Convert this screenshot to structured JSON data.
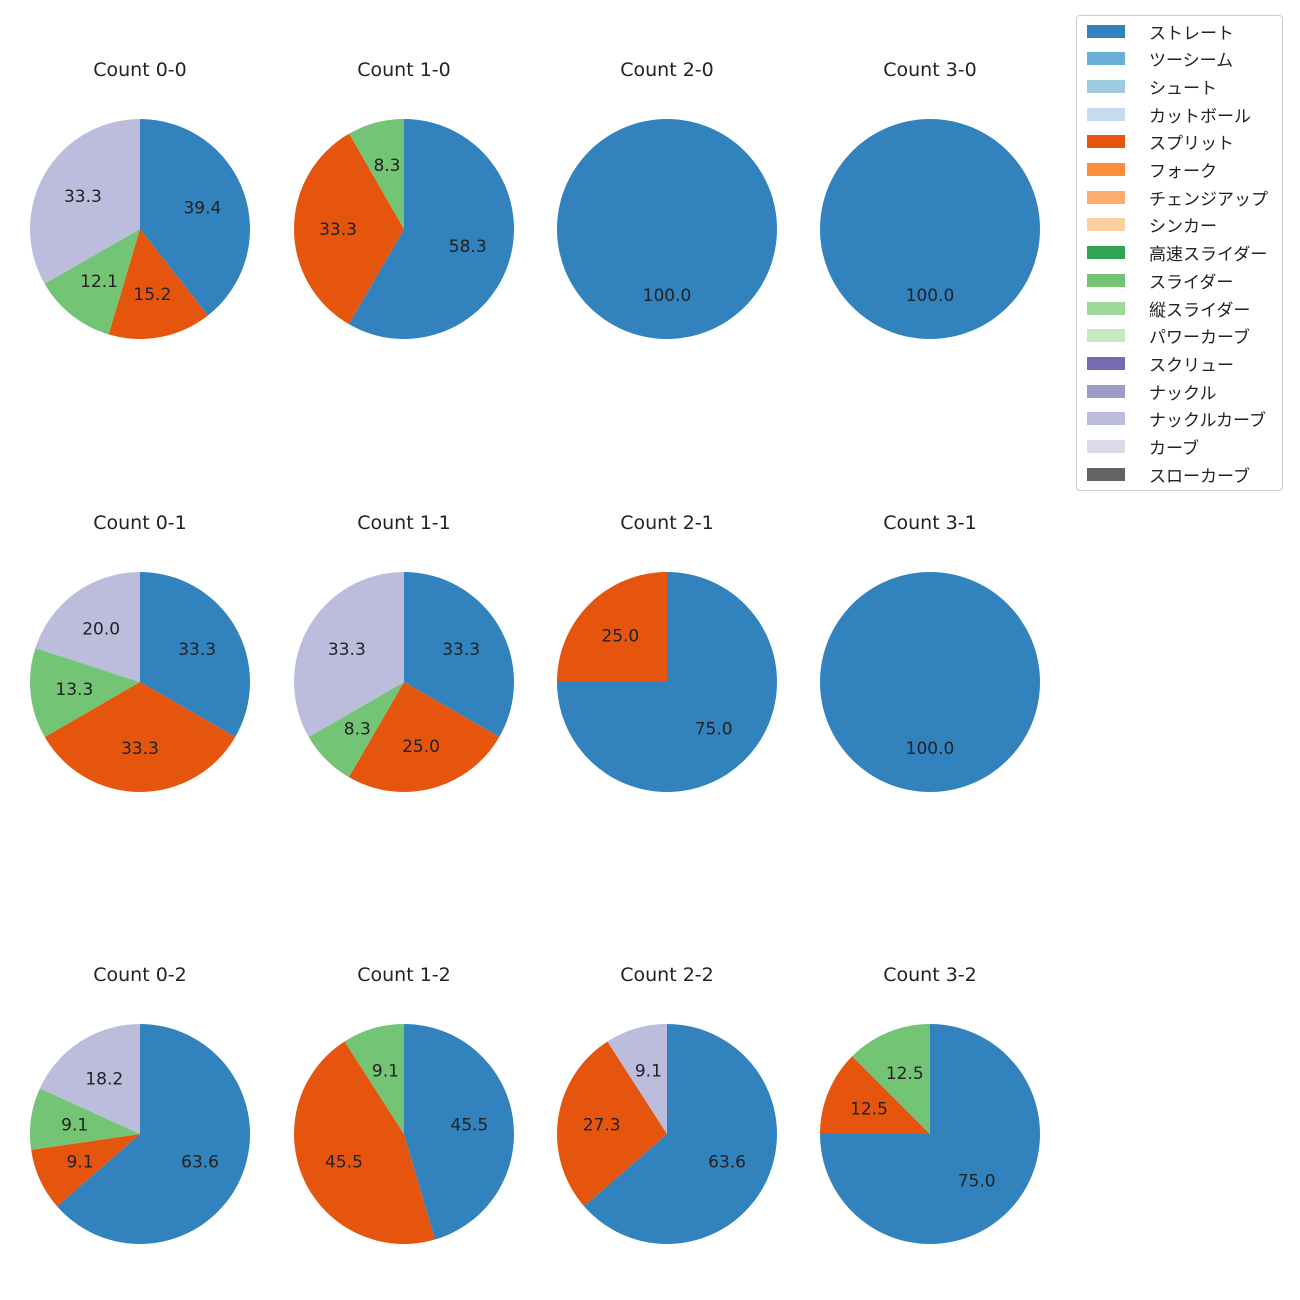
{
  "chart_data": {
    "type": "pie",
    "categories": [
      "ストレート",
      "ツーシーム",
      "シュート",
      "カットボール",
      "スプリット",
      "フォーク",
      "チェンジアップ",
      "シンカー",
      "高速スライダー",
      "スライダー",
      "縦スライダー",
      "パワーカーブ",
      "スクリュー",
      "ナックル",
      "ナックルカーブ",
      "カーブ",
      "スローカーブ"
    ],
    "colors": [
      "#3182bd",
      "#6baed6",
      "#9ecae1",
      "#c6dbef",
      "#e6550d",
      "#fd8d3c",
      "#fdae6b",
      "#fdd0a2",
      "#31a354",
      "#74c476",
      "#a1d99b",
      "#c7e9c0",
      "#756bb1",
      "#9e9ac8",
      "#bcbddc",
      "#dadaeb",
      "#636363"
    ],
    "panels": [
      {
        "title": "Count 0-0",
        "slices": [
          {
            "category": "ストレート",
            "value": 39.4,
            "label": "39.4"
          },
          {
            "category": "スプリット",
            "value": 15.2,
            "label": "15.2"
          },
          {
            "category": "スライダー",
            "value": 12.1,
            "label": "12.1"
          },
          {
            "category": "ナックルカーブ",
            "value": 33.3,
            "label": "33.3"
          }
        ]
      },
      {
        "title": "Count 1-0",
        "slices": [
          {
            "category": "ストレート",
            "value": 58.3,
            "label": "58.3"
          },
          {
            "category": "スプリット",
            "value": 33.3,
            "label": "33.3"
          },
          {
            "category": "スライダー",
            "value": 8.3,
            "label": "8.3"
          }
        ]
      },
      {
        "title": "Count 2-0",
        "slices": [
          {
            "category": "ストレート",
            "value": 100.0,
            "label": "100.0"
          }
        ]
      },
      {
        "title": "Count 3-0",
        "slices": [
          {
            "category": "ストレート",
            "value": 100.0,
            "label": "100.0"
          }
        ]
      },
      {
        "title": "Count 0-1",
        "slices": [
          {
            "category": "ストレート",
            "value": 33.3,
            "label": "33.3"
          },
          {
            "category": "スプリット",
            "value": 33.3,
            "label": "33.3"
          },
          {
            "category": "スライダー",
            "value": 13.3,
            "label": "13.3"
          },
          {
            "category": "ナックルカーブ",
            "value": 20.0,
            "label": "20.0"
          }
        ]
      },
      {
        "title": "Count 1-1",
        "slices": [
          {
            "category": "ストレート",
            "value": 33.3,
            "label": "33.3"
          },
          {
            "category": "スプリット",
            "value": 25.0,
            "label": "25.0"
          },
          {
            "category": "スライダー",
            "value": 8.3,
            "label": "8.3"
          },
          {
            "category": "ナックルカーブ",
            "value": 33.3,
            "label": "33.3"
          }
        ]
      },
      {
        "title": "Count 2-1",
        "slices": [
          {
            "category": "ストレート",
            "value": 75.0,
            "label": "75.0"
          },
          {
            "category": "スプリット",
            "value": 25.0,
            "label": "25.0"
          }
        ]
      },
      {
        "title": "Count 3-1",
        "slices": [
          {
            "category": "ストレート",
            "value": 100.0,
            "label": "100.0"
          }
        ]
      },
      {
        "title": "Count 0-2",
        "slices": [
          {
            "category": "ストレート",
            "value": 63.6,
            "label": "63.6"
          },
          {
            "category": "スプリット",
            "value": 9.1,
            "label": "9.1"
          },
          {
            "category": "スライダー",
            "value": 9.1,
            "label": "9.1"
          },
          {
            "category": "ナックルカーブ",
            "value": 18.2,
            "label": "18.2"
          }
        ]
      },
      {
        "title": "Count 1-2",
        "slices": [
          {
            "category": "ストレート",
            "value": 45.5,
            "label": "45.5"
          },
          {
            "category": "スプリット",
            "value": 45.5,
            "label": "45.5"
          },
          {
            "category": "スライダー",
            "value": 9.1,
            "label": "9.1"
          }
        ]
      },
      {
        "title": "Count 2-2",
        "slices": [
          {
            "category": "ストレート",
            "value": 63.6,
            "label": "63.6"
          },
          {
            "category": "スプリット",
            "value": 27.3,
            "label": "27.3"
          },
          {
            "category": "ナックルカーブ",
            "value": 9.1,
            "label": "9.1"
          }
        ]
      },
      {
        "title": "Count 3-2",
        "slices": [
          {
            "category": "ストレート",
            "value": 75.0,
            "label": "75.0"
          },
          {
            "category": "スプリット",
            "value": 12.5,
            "label": "12.5"
          },
          {
            "category": "スライダー",
            "value": 12.5,
            "label": "12.5"
          }
        ]
      }
    ],
    "legend_position": "top-right"
  }
}
